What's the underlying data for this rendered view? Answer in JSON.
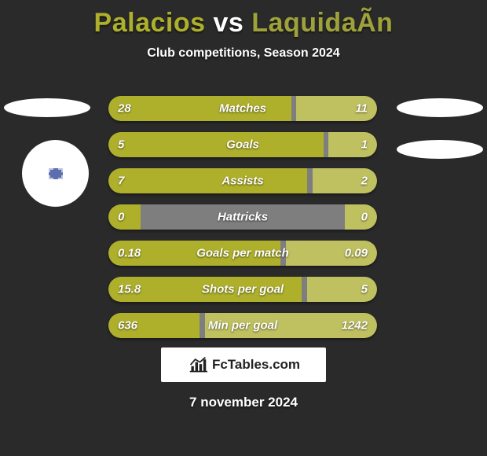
{
  "title": {
    "p1": "Palacios",
    "vs": "vs",
    "p2": "LaquidaÃ­n"
  },
  "subtitle": "Club competitions, Season 2024",
  "colors": {
    "p1": "#aeb02b",
    "p2": "#9fa23a",
    "track": "#7e7e7e",
    "seg_light": "#c3c45e",
    "background": "#2a2a2a",
    "white": "#ffffff"
  },
  "bars": [
    {
      "label": "Matches",
      "left_val": "28",
      "right_val": "11",
      "left_pct": 68,
      "right_pct": 30,
      "left_color": "#aeb02b",
      "right_color": "#bfc060"
    },
    {
      "label": "Goals",
      "left_val": "5",
      "right_val": "1",
      "left_pct": 80,
      "right_pct": 18,
      "left_color": "#aeb02b",
      "right_color": "#bfc060"
    },
    {
      "label": "Assists",
      "left_val": "7",
      "right_val": "2",
      "left_pct": 74,
      "right_pct": 24,
      "left_color": "#aeb02b",
      "right_color": "#bfc060"
    },
    {
      "label": "Hattricks",
      "left_val": "0",
      "right_val": "0",
      "left_pct": 12,
      "right_pct": 12,
      "left_color": "#aeb02b",
      "right_color": "#bfc060"
    },
    {
      "label": "Goals per match",
      "left_val": "0.18",
      "right_val": "0.09",
      "left_pct": 64,
      "right_pct": 34,
      "left_color": "#aeb02b",
      "right_color": "#bfc060"
    },
    {
      "label": "Shots per goal",
      "left_val": "15.8",
      "right_val": "5",
      "left_pct": 72,
      "right_pct": 26,
      "left_color": "#aeb02b",
      "right_color": "#bfc060"
    },
    {
      "label": "Min per goal",
      "left_val": "636",
      "right_val": "1242",
      "left_pct": 34,
      "right_pct": 64,
      "left_color": "#aeb02b",
      "right_color": "#bfc060"
    }
  ],
  "logo_text": "FcTables.com",
  "date": "7 november 2024"
}
